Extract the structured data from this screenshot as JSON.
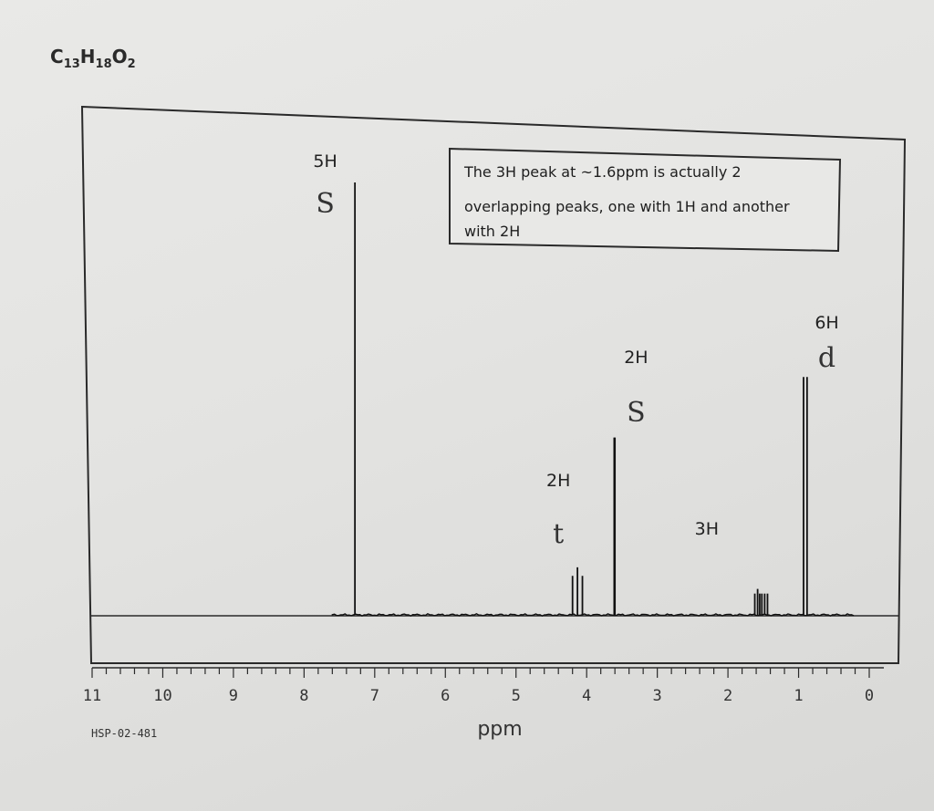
{
  "formula": {
    "c": "C",
    "c_n": "13",
    "h": "H",
    "h_n": "18",
    "o": "O",
    "o_n": "2"
  },
  "note_lines": [
    "The 3H peak at ~1.6ppm is actually 2",
    "overlapping peaks, one with 1H and another",
    "with 2H"
  ],
  "sample_code": "HSP-02-481",
  "chart_data": {
    "type": "line",
    "xlabel": "ppm",
    "ylabel": "",
    "xlim": [
      11,
      0
    ],
    "x_reversed": true,
    "x_ticks": [
      11,
      10,
      9,
      8,
      7,
      6,
      5,
      4,
      3,
      2,
      1,
      0
    ],
    "grid": false,
    "peaks": [
      {
        "ppm": 7.28,
        "height": 1.0,
        "lines": [
          7.28
        ]
      },
      {
        "ppm": 4.15,
        "height": 0.11,
        "lines": [
          4.2,
          4.13,
          4.06
        ]
      },
      {
        "ppm": 3.6,
        "height": 0.41,
        "lines": [
          3.61,
          3.6
        ]
      },
      {
        "ppm": 1.55,
        "height": 0.06,
        "lines": [
          1.62,
          1.58,
          1.55,
          1.52,
          1.48,
          1.44
        ]
      },
      {
        "ppm": 0.9,
        "height": 0.55,
        "lines": [
          0.93,
          0.88
        ]
      }
    ],
    "annotations": [
      {
        "ppm": 7.7,
        "count": "5H",
        "multiplicity": "S"
      },
      {
        "ppm": 4.4,
        "count": "2H",
        "multiplicity": "t"
      },
      {
        "ppm": 3.3,
        "count": "2H",
        "multiplicity": "S"
      },
      {
        "ppm": 2.3,
        "count": "3H",
        "multiplicity": ""
      },
      {
        "ppm": 0.6,
        "count": "6H",
        "multiplicity": "d"
      }
    ]
  }
}
